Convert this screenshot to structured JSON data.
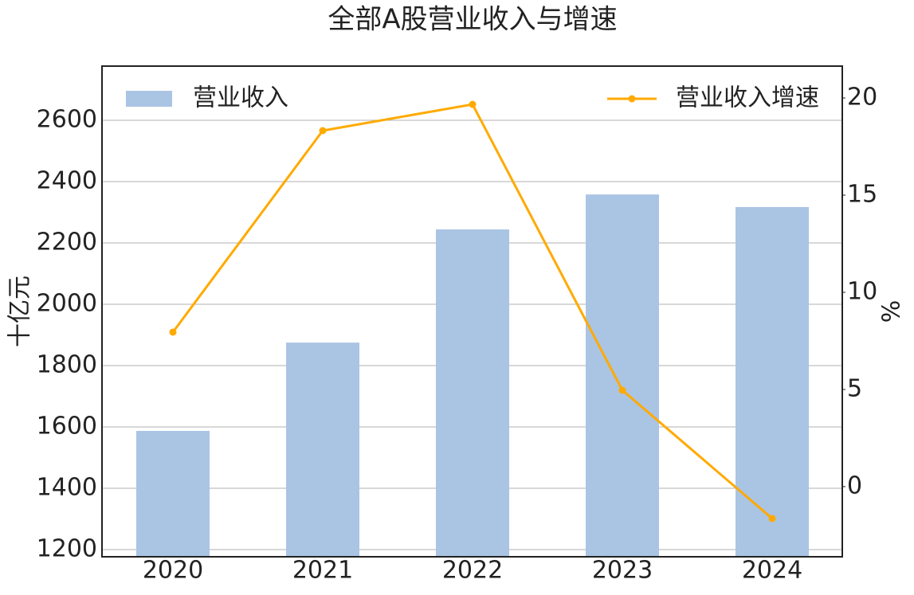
{
  "chart_data": {
    "type": "bar_line",
    "title": "全部A股营业收入与增速",
    "y_label": "十亿元",
    "y2_label": "%",
    "categories": [
      "2020",
      "2021",
      "2022",
      "2023",
      "2024"
    ],
    "series": [
      {
        "name": "营业收入",
        "type": "bar",
        "color": "#aac4e4",
        "values": [
          1587,
          1875,
          2244,
          2358,
          2317
        ]
      },
      {
        "name": "营业收入增速",
        "type": "line",
        "axis": "y2",
        "color": "#ffaa00",
        "values": [
          7.95,
          18.32,
          19.67,
          4.96,
          -1.64
        ]
      }
    ],
    "ylim": [
      1176.6,
      2776.6
    ],
    "yticks": [
      1200,
      1400,
      1600,
      1800,
      2000,
      2200,
      2400,
      2600
    ],
    "y2lim": [
      -3.61,
      21.64
    ],
    "y2ticks": [
      0,
      5,
      10,
      15,
      20
    ],
    "grid": true
  }
}
